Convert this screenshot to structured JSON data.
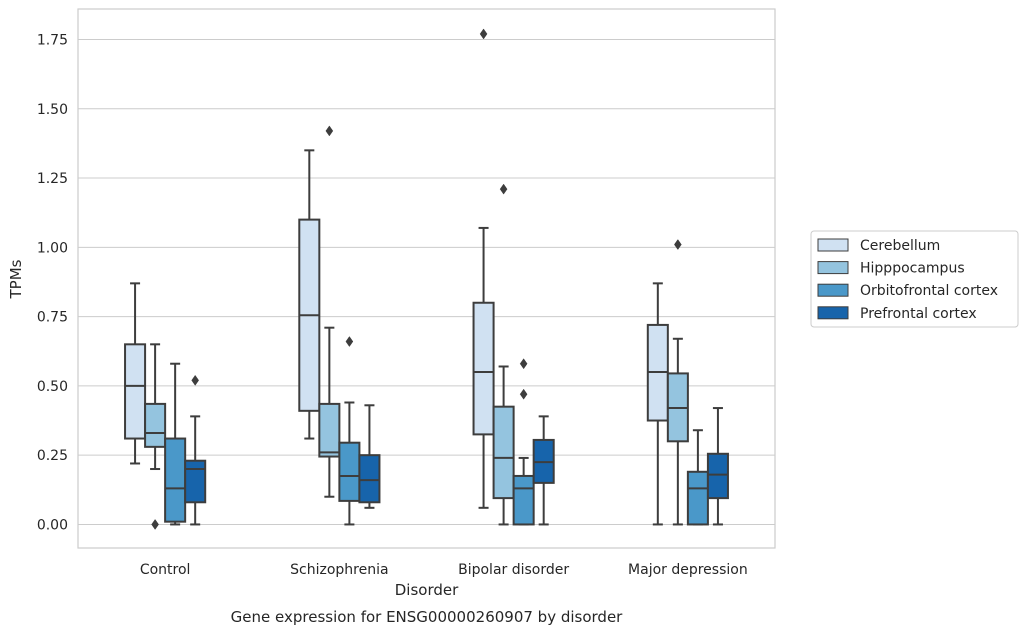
{
  "chart_data": {
    "type": "box",
    "title": "",
    "caption": "Gene expression for ENSG00000260907 by disorder",
    "xlabel": "Disorder",
    "ylabel": "TPMs",
    "ylim": [
      -0.085,
      1.86
    ],
    "yticks": [
      "0.00",
      "0.25",
      "0.50",
      "0.75",
      "1.00",
      "1.25",
      "1.50",
      "1.75"
    ],
    "grid": true,
    "legend_position": "right",
    "categories": [
      "Control",
      "Schizophrenia",
      "Bipolar disorder",
      "Major depression"
    ],
    "series": [
      {
        "name": "Cerebellum",
        "color": "#d0e1f2",
        "boxes": [
          {
            "whisker_low": 0.22,
            "q1": 0.31,
            "median": 0.5,
            "q3": 0.65,
            "whisker_high": 0.87,
            "outliers": []
          },
          {
            "whisker_low": 0.31,
            "q1": 0.41,
            "median": 0.755,
            "q3": 1.1,
            "whisker_high": 1.35,
            "outliers": []
          },
          {
            "whisker_low": 0.06,
            "q1": 0.325,
            "median": 0.55,
            "q3": 0.8,
            "whisker_high": 1.07,
            "outliers": [
              1.77
            ]
          },
          {
            "whisker_low": 0.0,
            "q1": 0.375,
            "median": 0.55,
            "q3": 0.72,
            "whisker_high": 0.87,
            "outliers": []
          }
        ]
      },
      {
        "name": "Hipppocampus",
        "color": "#94c4df",
        "boxes": [
          {
            "whisker_low": 0.2,
            "q1": 0.28,
            "median": 0.33,
            "q3": 0.435,
            "whisker_high": 0.65,
            "outliers": [
              0.0
            ]
          },
          {
            "whisker_low": 0.1,
            "q1": 0.245,
            "median": 0.26,
            "q3": 0.435,
            "whisker_high": 0.71,
            "outliers": [
              1.42
            ]
          },
          {
            "whisker_low": 0.0,
            "q1": 0.095,
            "median": 0.24,
            "q3": 0.425,
            "whisker_high": 0.57,
            "outliers": [
              1.21
            ]
          },
          {
            "whisker_low": 0.0,
            "q1": 0.3,
            "median": 0.42,
            "q3": 0.545,
            "whisker_high": 0.67,
            "outliers": [
              1.01
            ]
          }
        ]
      },
      {
        "name": "Orbitofrontal cortex",
        "color": "#4a98c9",
        "boxes": [
          {
            "whisker_low": 0.0,
            "q1": 0.01,
            "median": 0.13,
            "q3": 0.31,
            "whisker_high": 0.58,
            "outliers": []
          },
          {
            "whisker_low": 0.0,
            "q1": 0.085,
            "median": 0.175,
            "q3": 0.295,
            "whisker_high": 0.44,
            "outliers": [
              0.66
            ]
          },
          {
            "whisker_low": 0.0,
            "q1": 0.0,
            "median": 0.13,
            "q3": 0.175,
            "whisker_high": 0.24,
            "outliers": [
              0.47,
              0.58
            ]
          },
          {
            "whisker_low": 0.0,
            "q1": 0.0,
            "median": 0.13,
            "q3": 0.19,
            "whisker_high": 0.34,
            "outliers": []
          }
        ]
      },
      {
        "name": "Prefrontal cortex",
        "color": "#1764ab",
        "boxes": [
          {
            "whisker_low": 0.0,
            "q1": 0.08,
            "median": 0.2,
            "q3": 0.23,
            "whisker_high": 0.39,
            "outliers": [
              0.52
            ]
          },
          {
            "whisker_low": 0.06,
            "q1": 0.08,
            "median": 0.16,
            "q3": 0.25,
            "whisker_high": 0.43,
            "outliers": []
          },
          {
            "whisker_low": 0.0,
            "q1": 0.15,
            "median": 0.225,
            "q3": 0.305,
            "whisker_high": 0.39,
            "outliers": []
          },
          {
            "whisker_low": 0.0,
            "q1": 0.095,
            "median": 0.18,
            "q3": 0.255,
            "whisker_high": 0.42,
            "outliers": []
          }
        ]
      }
    ]
  }
}
